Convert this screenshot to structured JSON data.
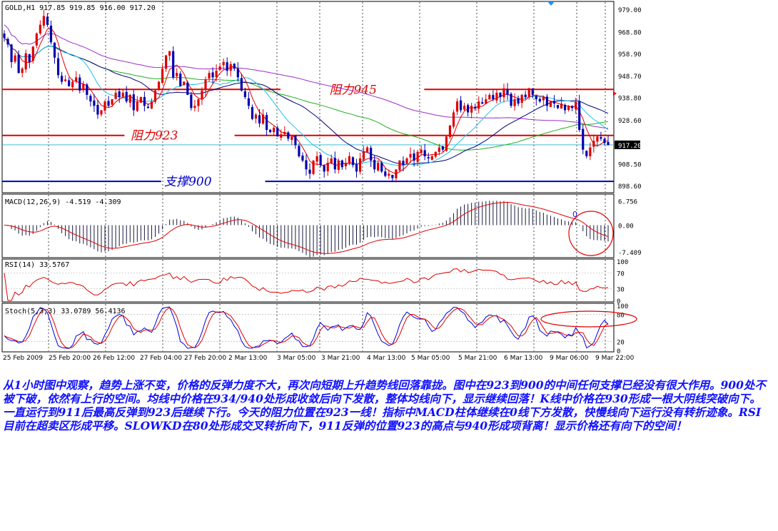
{
  "chart_data": {
    "type": "candlestick",
    "price_panel": {
      "header": "GOLD,H1  917.85 919.85 916.00 917.20",
      "y_ticks": [
        "979.00",
        "968.80",
        "958.90",
        "948.70",
        "938.80",
        "928.60",
        "917.20",
        "908.50",
        "898.60"
      ],
      "y_tick_values": [
        979.0,
        968.8,
        958.9,
        948.7,
        938.8,
        928.6,
        917.2,
        908.5,
        898.6
      ],
      "last_price": 917.2,
      "ylim": [
        896.0,
        982.0
      ],
      "levels": [
        {
          "label": "阻力945",
          "value": 942.5,
          "color": "#e00000",
          "segments": [
            [
              0.0,
              0.455
            ],
            [
              0.69,
              1.0
            ]
          ],
          "label_pos": 0.535
        },
        {
          "label": "阻力923",
          "value": 921.5,
          "color": "#e00000",
          "segments": [
            [
              0.0,
              0.2
            ],
            [
              0.38,
              1.0
            ]
          ],
          "label_pos": 0.21
        },
        {
          "label": "支撑900",
          "value": 900.5,
          "color": "#0000c0",
          "segments": [
            [
              0.0,
              0.26
            ],
            [
              0.43,
              1.0
            ]
          ],
          "label_pos": 0.265
        }
      ],
      "close": [
        966,
        963,
        955,
        958,
        950,
        952,
        959,
        955,
        962,
        968,
        972,
        976,
        972,
        964,
        957,
        949,
        946,
        947,
        944,
        946,
        948,
        942,
        945,
        940,
        937,
        935,
        931,
        933,
        937,
        935,
        938,
        941,
        939,
        941,
        937,
        940,
        933,
        937,
        939,
        935,
        934,
        937,
        942,
        946,
        952,
        958,
        960,
        948,
        950,
        944,
        946,
        940,
        934,
        935,
        938,
        942,
        947,
        950,
        948,
        951,
        953,
        955,
        951,
        954,
        952,
        948,
        942,
        939,
        935,
        929,
        931,
        927,
        931,
        924,
        923,
        925,
        921,
        922,
        923,
        920,
        921,
        917,
        912,
        910,
        906,
        904,
        910,
        912,
        908,
        905,
        909,
        911,
        906,
        910,
        907,
        909,
        912,
        908,
        905,
        911,
        914,
        916,
        910,
        906,
        909,
        905,
        903,
        904,
        902,
        906,
        910,
        908,
        911,
        913,
        910,
        914,
        915,
        912,
        911,
        912,
        914,
        916,
        915,
        921,
        926,
        932,
        937,
        933,
        935,
        932,
        935,
        934,
        937,
        936,
        938,
        940,
        938,
        941,
        939,
        943,
        940,
        935,
        938,
        936,
        940,
        939,
        943,
        940,
        938,
        937,
        939,
        935,
        937,
        936,
        934,
        936,
        933,
        935,
        934,
        937,
        924,
        915,
        912,
        916,
        919,
        921,
        920,
        918,
        917
      ]
    },
    "macd_panel": {
      "label": "MACD(12,26,9) -4.519 -4.309",
      "y_ticks": [
        "6.756",
        "0.00",
        "-7.409"
      ],
      "y_tick_values": [
        6.756,
        0.0,
        -7.409
      ],
      "ylim": [
        -8.6,
        8.0
      ]
    },
    "rsi_panel": {
      "label": "RSI(14) 33.5767",
      "y_ticks": [
        "100",
        "70",
        "30",
        "0"
      ],
      "y_tick_values": [
        100,
        70,
        30,
        0
      ]
    },
    "stoch_panel": {
      "label": "Stoch(5,3,3) 33.0789 56.4136",
      "y_ticks": [
        "100",
        "80",
        "20",
        "0"
      ],
      "y_tick_values": [
        100,
        80,
        20,
        0
      ]
    },
    "x_labels": [
      "25 Feb 2009",
      "25 Feb 20:00",
      "26 Feb 12:00",
      "27 Feb 04:00",
      "27 Feb 20:00",
      "2 Mar 13:00",
      "3 Mar 05:00",
      "3 Mar 21:00",
      "4 Mar 13:00",
      "5 Mar 05:00",
      "5 Mar 21:00",
      "6 Mar 13:00",
      "9 Mar 06:00",
      "9 Mar 22:00"
    ],
    "grid": true,
    "colors": {
      "bull": "#e00000",
      "bear": "#0000b0",
      "ma_fast": "#e00000",
      "ma_mid": "#22c0ee",
      "ma_slow": "#000080",
      "ma_long": "#20b020",
      "ma_longest": "#9a30c8",
      "macd_hist": "#1a1a40",
      "signal": "#e00000",
      "rsi": "#e00000",
      "stoch_k": "#0000e0",
      "stoch_d": "#e00000",
      "annotation": "#e00000",
      "last_price_bg": "#000000"
    }
  },
  "annotations": {
    "macd_marker": "0"
  },
  "commentary": "从1小时图中观察，趋势上涨不变，价格的反弹力度不大，再次向短期上升趋势线回落靠拢。图中在923到900的中间任何支撑已经没有很大作用。900处不被下破，依然有上行的空间。均线中价格在934/940处形成收敛后向下发散，整体均线向下，显示继续回落！K线中价格在930形成一根大阴线突破向下。一直运行到911后最高反弹到923后继续下行。今天的阻力位置在923一线！指标中MACD柱体继续在0线下方发散，快慢线向下运行没有转折迹象。RSI目前在超卖区形成平移。SLOWKD在80处形成交叉转折向下，911反弹的位置923的高点与940形成项背离！显示价格还有向下的空间！"
}
